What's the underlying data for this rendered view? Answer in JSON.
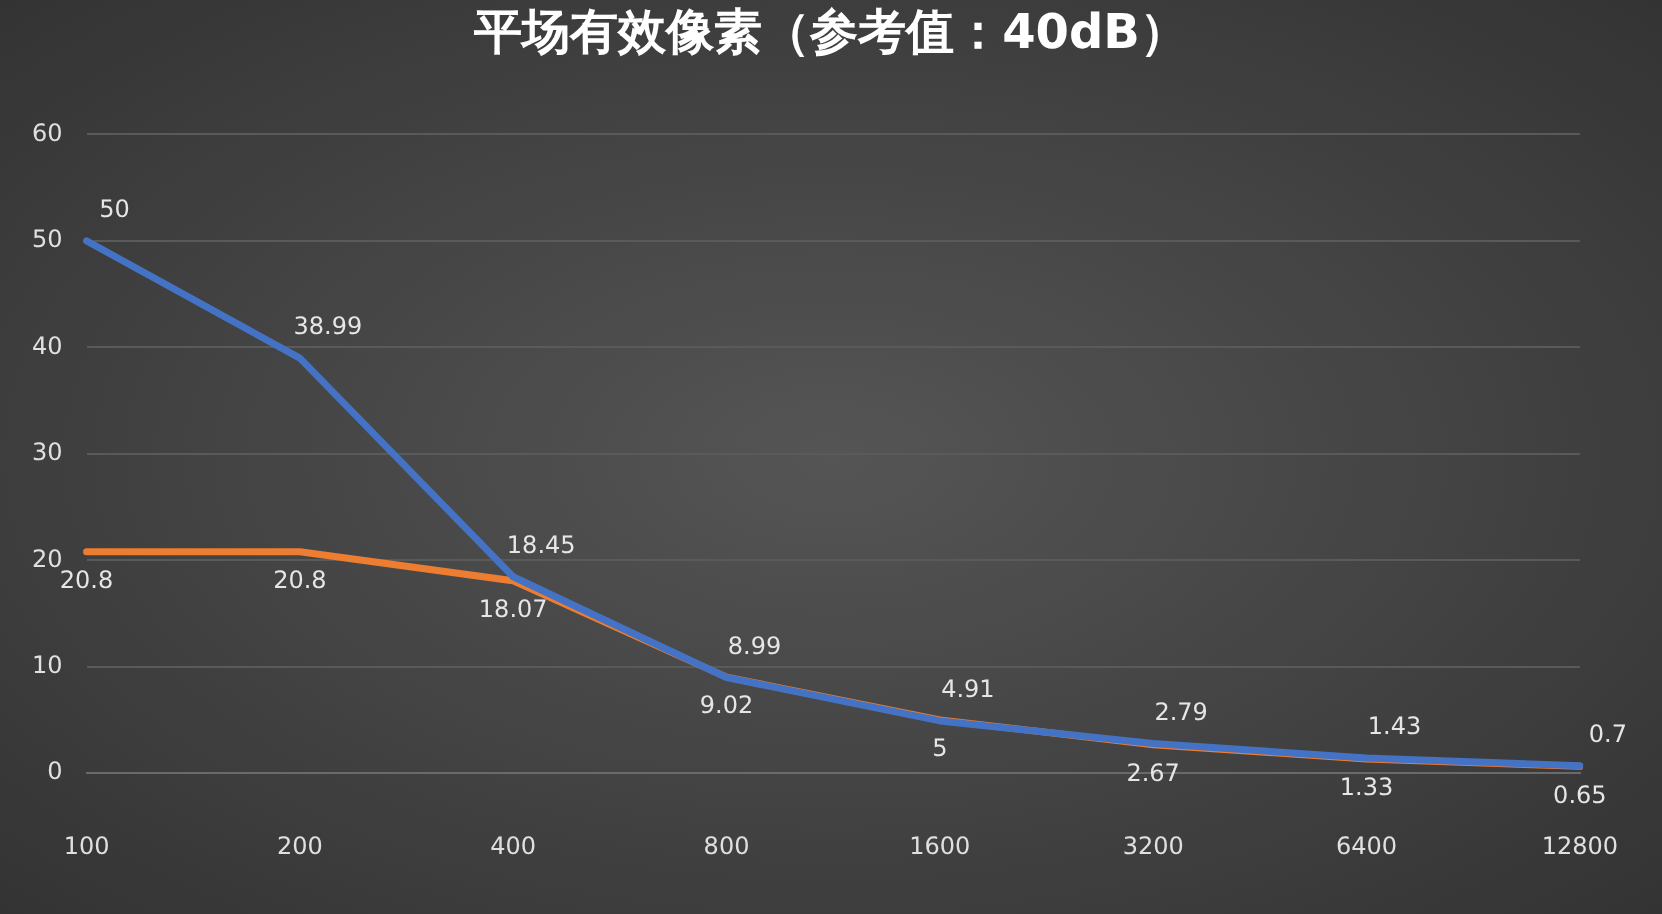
{
  "chart_data": {
    "type": "line",
    "title": "平场有效像素（参考值：40dB）",
    "categories": [
      "100",
      "200",
      "400",
      "800",
      "1600",
      "3200",
      "6400",
      "12800"
    ],
    "series": [
      {
        "color": "#4472c4",
        "values": [
          50,
          38.99,
          18.45,
          8.99,
          4.91,
          2.79,
          1.43,
          0.7
        ]
      },
      {
        "color": "#ed7d31",
        "values": [
          20.8,
          20.8,
          18.07,
          9.02,
          5,
          2.67,
          1.33,
          0.65
        ]
      }
    ],
    "ylim": [
      0,
      60
    ],
    "yticks": [
      0,
      10,
      20,
      30,
      40,
      50,
      60
    ],
    "grid": "y",
    "legend": false,
    "marker": "none",
    "data_labels": true
  }
}
